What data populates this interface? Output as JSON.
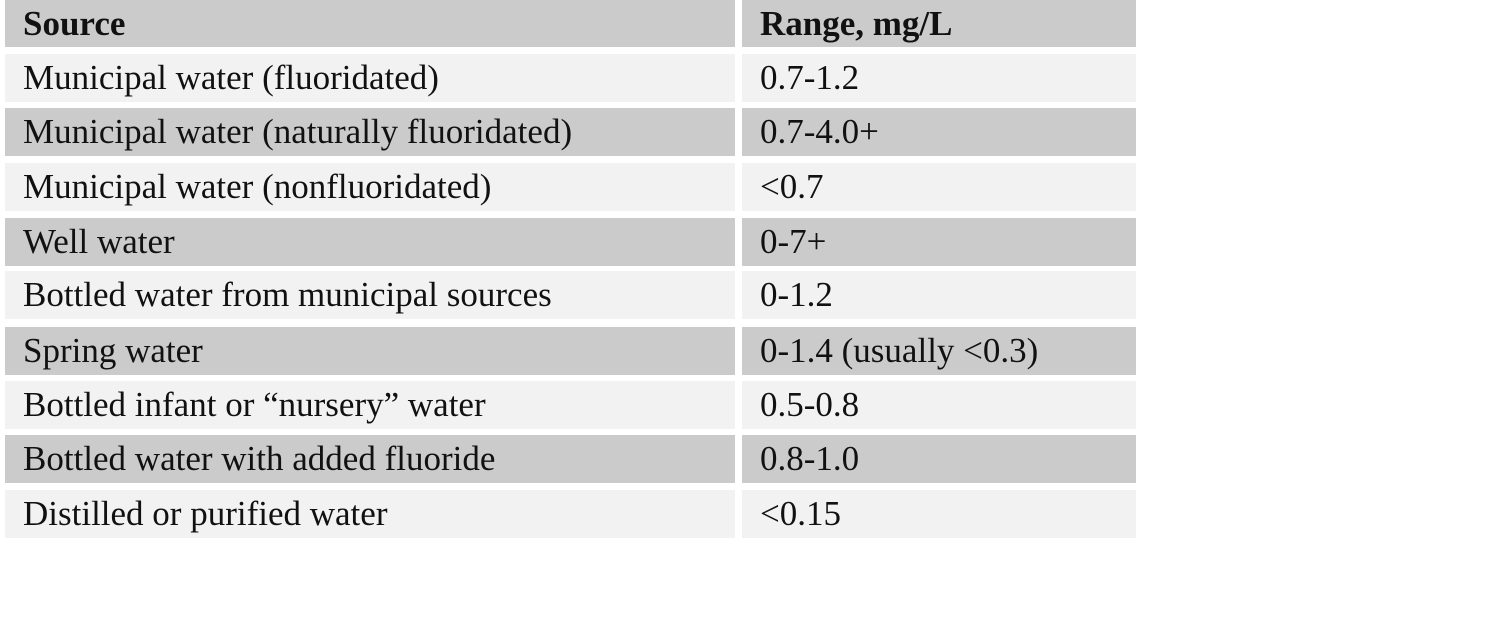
{
  "table": {
    "header": [
      "Source",
      "Range, mg/L"
    ],
    "rows": [
      [
        "Municipal water (fluoridated)",
        "0.7-1.2"
      ],
      [
        "Municipal water (naturally fluoridated)",
        "0.7-4.0+"
      ],
      [
        "Municipal water (nonfluoridated)",
        "<0.7"
      ],
      [
        "Well water",
        "0-7+"
      ],
      [
        "Bottled water from municipal sources",
        "0-1.2"
      ],
      [
        "Spring water",
        "0-1.4 (usually <0.3)"
      ],
      [
        "Bottled infant or “nursery” water",
        "0.5-0.8"
      ],
      [
        "Bottled water with added fluoride",
        "0.8-1.0"
      ],
      [
        "Distilled or purified water",
        "<0.15"
      ]
    ]
  }
}
